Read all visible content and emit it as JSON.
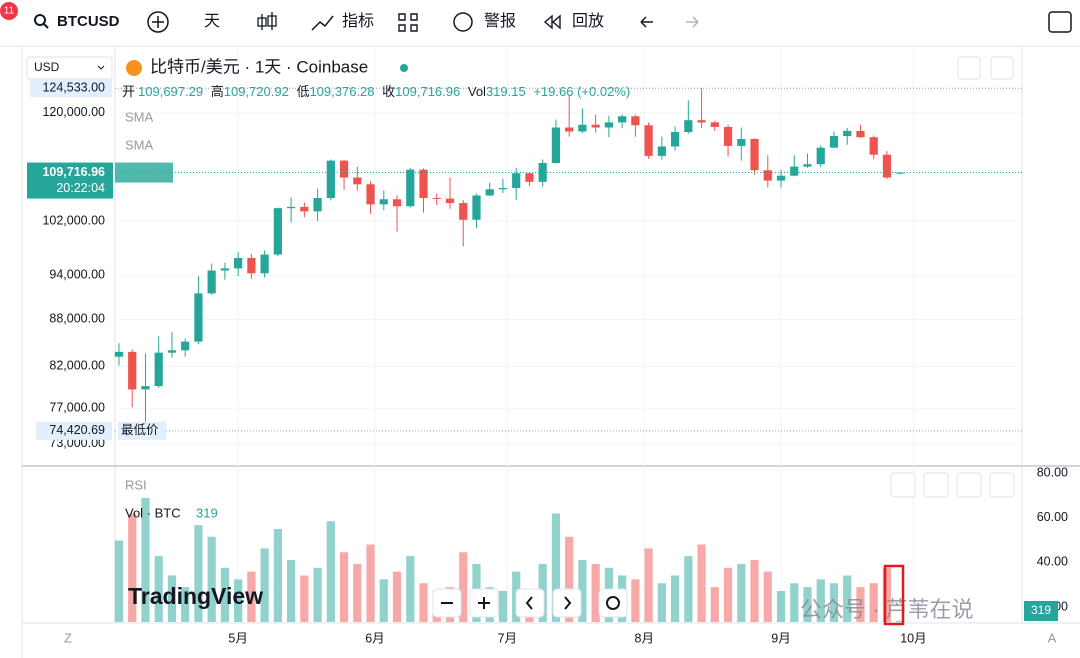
{
  "toolbar": {
    "symbol": "BTCUSD",
    "badge": "11",
    "interval": "天",
    "indicators": "指标",
    "alert": "警报",
    "replay": "回放"
  },
  "currency": "USD",
  "chart_data": {
    "type": "candlestick",
    "title": "比特币/美元 · 1天 · Coinbase",
    "legend": {
      "open_label": "开",
      "open": "109,697.29",
      "high_label": "高",
      "high": "109,720.92",
      "low_label": "低",
      "low": "109,376.28",
      "close_label": "收",
      "close": "109,716.96",
      "vol_label": "Vol",
      "vol": "319.15",
      "change": "+19.66 (+0.02%)"
    },
    "indicators": [
      "SMA",
      "SMA"
    ],
    "candles": [
      [
        83200,
        84900,
        82100,
        83800
      ],
      [
        83800,
        84100,
        77100,
        79200
      ],
      [
        79200,
        83600,
        74420.69,
        79600
      ],
      [
        79600,
        85800,
        79400,
        83700
      ],
      [
        83700,
        86300,
        83100,
        84000
      ],
      [
        84000,
        85500,
        83200,
        85100
      ],
      [
        85100,
        93900,
        84800,
        91500
      ],
      [
        91500,
        95700,
        91300,
        94700
      ],
      [
        94700,
        95800,
        93400,
        95000
      ],
      [
        95000,
        97400,
        93900,
        96500
      ],
      [
        96500,
        97100,
        93500,
        94300
      ],
      [
        94300,
        97600,
        93700,
        97000
      ],
      [
        97000,
        104100,
        96800,
        104000
      ],
      [
        104000,
        105700,
        101800,
        104200
      ],
      [
        104200,
        104900,
        102600,
        103500
      ],
      [
        103500,
        107100,
        102000,
        105600
      ],
      [
        105600,
        111900,
        105200,
        111700
      ],
      [
        111700,
        111800,
        106900,
        108900
      ],
      [
        108900,
        110700,
        106800,
        107800
      ],
      [
        107800,
        108300,
        103100,
        104600
      ],
      [
        104600,
        106800,
        103700,
        105400
      ],
      [
        105400,
        106000,
        100400,
        104300
      ],
      [
        104300,
        110500,
        104100,
        110200
      ],
      [
        110200,
        110400,
        103300,
        105600
      ],
      [
        105600,
        106300,
        104500,
        105500
      ],
      [
        105500,
        108900,
        103900,
        104800
      ],
      [
        104800,
        105300,
        98200,
        102200
      ],
      [
        102200,
        106300,
        100900,
        106000
      ],
      [
        106000,
        108100,
        105900,
        107000
      ],
      [
        107000,
        108700,
        106400,
        107200
      ],
      [
        107200,
        110500,
        105300,
        109600
      ],
      [
        109600,
        109700,
        107500,
        108200
      ],
      [
        108200,
        111900,
        107400,
        111300
      ],
      [
        111300,
        118800,
        111200,
        117400
      ],
      [
        117400,
        123200,
        115800,
        116700
      ],
      [
        116700,
        120800,
        116400,
        117900
      ],
      [
        117900,
        119700,
        116500,
        117400
      ],
      [
        117400,
        119500,
        115700,
        118300
      ],
      [
        118300,
        119700,
        117300,
        119400
      ],
      [
        119400,
        119700,
        115800,
        117800
      ],
      [
        117800,
        118300,
        112000,
        112500
      ],
      [
        112500,
        115800,
        111900,
        114100
      ],
      [
        114100,
        117600,
        113400,
        116600
      ],
      [
        116600,
        122300,
        116300,
        118700
      ],
      [
        118700,
        124533,
        117300,
        118300
      ],
      [
        118300,
        118600,
        116800,
        117500
      ],
      [
        117500,
        117900,
        112400,
        114200
      ],
      [
        114200,
        117400,
        111700,
        115400
      ],
      [
        115400,
        115500,
        109400,
        110100
      ],
      [
        110100,
        112600,
        107300,
        108400
      ],
      [
        108400,
        110200,
        107300,
        109200
      ],
      [
        109200,
        112600,
        109100,
        110700
      ],
      [
        110700,
        112900,
        110500,
        111100
      ],
      [
        111100,
        114300,
        110600,
        113900
      ],
      [
        113900,
        116700,
        113800,
        115900
      ],
      [
        115900,
        117300,
        114400,
        116800
      ],
      [
        116800,
        117900,
        115600,
        115700
      ],
      [
        115700,
        116000,
        111900,
        112700
      ],
      [
        112700,
        113300,
        108700,
        108900
      ],
      [
        109697.29,
        109720.92,
        109376.28,
        109716.96
      ]
    ],
    "up_color": "#26a69a",
    "down_color": "#ef5350",
    "log_scale": true,
    "ylim": [
      70700,
      132300
    ],
    "yticks": [
      {
        "value": 120000,
        "label": "120,000.00"
      },
      {
        "value": 102000,
        "label": "102,000.00"
      },
      {
        "value": 94000,
        "label": "94,000.00"
      },
      {
        "value": 88000,
        "label": "88,000.00"
      },
      {
        "value": 82000,
        "label": "82,000.00"
      },
      {
        "value": 77000,
        "label": "77,000.00"
      },
      {
        "value": 73000,
        "label": "73,000.00"
      }
    ],
    "xlim": [
      -0.3,
      68.2
    ],
    "xticks": [
      {
        "value": 9,
        "label": "5月"
      },
      {
        "value": 19.33,
        "label": "6月"
      },
      {
        "value": 29.33,
        "label": "7月"
      },
      {
        "value": 39.67,
        "label": "8月"
      },
      {
        "value": 50,
        "label": "9月"
      },
      {
        "value": 60,
        "label": "10月"
      }
    ],
    "high_marker": {
      "value": 124533,
      "label": "124,533.00"
    },
    "low_marker": {
      "value": 74420.69,
      "label": "74,420.69",
      "text": "最低价"
    },
    "last_price": {
      "value": 109716.96,
      "label": "109,716.96",
      "countdown": "20:22:04"
    },
    "volume": {
      "title": "Vol · BTC",
      "last_label": "319",
      "values": [
        21000,
        28000,
        32000,
        17000,
        12000,
        9000,
        25000,
        22000,
        14000,
        11000,
        13000,
        19000,
        24000,
        16000,
        12000,
        14000,
        26000,
        18000,
        15000,
        20000,
        11000,
        13000,
        17000,
        10000,
        8000,
        9000,
        18000,
        15000,
        9000,
        8000,
        13000,
        7000,
        15000,
        28000,
        22000,
        16000,
        15000,
        14000,
        12000,
        11000,
        19000,
        10000,
        12000,
        17000,
        20000,
        9000,
        14000,
        15000,
        16000,
        13000,
        8000,
        10000,
        9000,
        11000,
        10000,
        12000,
        9000,
        10000,
        14000,
        319.15
      ]
    },
    "rsi": {
      "title": "RSI",
      "ylim": [
        13.3,
        82.7
      ],
      "yticks": [
        {
          "value": 80,
          "label": "80.00"
        },
        {
          "value": 60,
          "label": "60.00"
        },
        {
          "value": 40,
          "label": "40.00"
        },
        {
          "value": 20,
          "label": "20.00"
        }
      ]
    },
    "grid": true
  },
  "watermark": "TradingView",
  "overlay": "公众号 · 芦苇在说",
  "time_corner": "Z",
  "scale_mode": "A"
}
